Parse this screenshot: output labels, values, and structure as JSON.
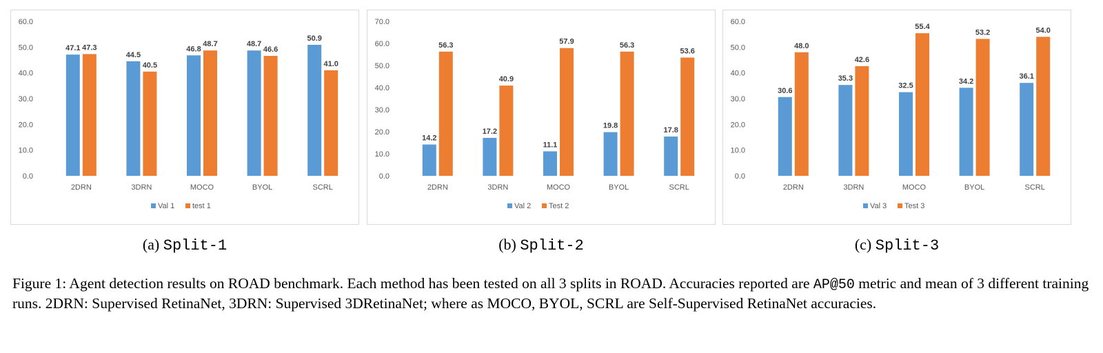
{
  "colors": {
    "series1": "#5b9bd5",
    "series2": "#ed7d31"
  },
  "chart_data": [
    {
      "type": "bar",
      "categories": [
        "2DRN",
        "3DRN",
        "MOCO",
        "BYOL",
        "SCRL"
      ],
      "series": [
        {
          "name": "Val 1",
          "values": [
            47.1,
            44.5,
            46.8,
            48.7,
            50.9
          ]
        },
        {
          "name": "test 1",
          "values": [
            47.3,
            40.5,
            48.7,
            46.6,
            41.0
          ]
        }
      ],
      "yticks": [
        "0.0",
        "10.0",
        "20.0",
        "30.0",
        "40.0",
        "50.0",
        "60.0"
      ],
      "ylim": [
        0,
        60
      ],
      "data_labels": [
        [
          "47.1",
          "44.5",
          "46.8",
          "48.7",
          "50.9"
        ],
        [
          "47.3",
          "40.5",
          "48.7",
          "46.6",
          "41.0"
        ]
      ],
      "legend": "bottom",
      "grid": false
    },
    {
      "type": "bar",
      "categories": [
        "2DRN",
        "3DRN",
        "MOCO",
        "BYOL",
        "SCRL"
      ],
      "series": [
        {
          "name": "Val 2",
          "values": [
            14.2,
            17.2,
            11.1,
            19.8,
            17.8
          ]
        },
        {
          "name": "Test 2",
          "values": [
            56.3,
            40.9,
            57.9,
            56.3,
            53.6
          ]
        }
      ],
      "yticks": [
        "0.0",
        "10.0",
        "20.0",
        "30.0",
        "40.0",
        "50.0",
        "60.0",
        "70.0"
      ],
      "ylim": [
        0,
        70
      ],
      "data_labels": [
        [
          "14.2",
          "17.2",
          "11.1",
          "19.8",
          "17.8"
        ],
        [
          "56.3",
          "40.9",
          "57.9",
          "56.3",
          "53.6"
        ]
      ],
      "legend": "bottom",
      "grid": false
    },
    {
      "type": "bar",
      "categories": [
        "2DRN",
        "3DRN",
        "MOCO",
        "BYOL",
        "SCRL"
      ],
      "series": [
        {
          "name": "Val 3",
          "values": [
            30.6,
            35.3,
            32.5,
            34.2,
            36.1
          ]
        },
        {
          "name": "Test 3",
          "values": [
            48.0,
            42.6,
            55.4,
            53.2,
            54.0
          ]
        }
      ],
      "yticks": [
        "0.0",
        "10.0",
        "20.0",
        "30.0",
        "40.0",
        "50.0",
        "60.0"
      ],
      "ylim": [
        0,
        60
      ],
      "data_labels": [
        [
          "30.6",
          "35.3",
          "32.5",
          "34.2",
          "36.1"
        ],
        [
          "48.0",
          "42.6",
          "55.4",
          "53.2",
          "54.0"
        ]
      ],
      "legend": "bottom",
      "grid": false
    }
  ],
  "subcaptions": [
    {
      "prefix": "(a)",
      "name": "Split-1"
    },
    {
      "prefix": "(b)",
      "name": "Split-2"
    },
    {
      "prefix": "(c)",
      "name": "Split-3"
    }
  ],
  "caption": {
    "part1": "Figure 1: Agent detection results on ROAD benchmark. Each method has been tested on all 3 splits in ROAD. Accuracies reported are ",
    "metric": "AP@50",
    "part2": " metric and mean of 3 different training runs.  2DRN: Supervised RetinaNet, 3DRN: Supervised 3DRetinaNet; where as MOCO, BYOL, SCRL are Self-Supervised RetinaNet accuracies."
  }
}
